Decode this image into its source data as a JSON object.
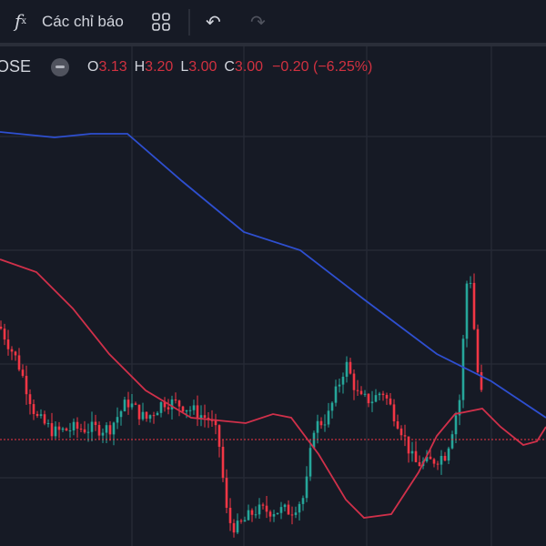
{
  "toolbar": {
    "fx_icon": "function-icon",
    "indicators_label": "Các chỉ báo",
    "layout_icon": "grid-layout-icon",
    "undo_icon": "undo-icon",
    "redo_icon": "redo-icon"
  },
  "legend": {
    "symbol": "OSE",
    "o_label": "O",
    "o": "3.13",
    "h_label": "H",
    "h": "3.20",
    "l_label": "L",
    "l": "3.00",
    "c_label": "C",
    "c": "3.00",
    "change": "−0.20 (−6.25%)"
  },
  "colors": {
    "background": "#161a25",
    "up": "#26a69a",
    "down": "#f23645",
    "ma_slow": "#2e4fd0",
    "ma_fast": "#d0304a",
    "last_price": "#f23645"
  },
  "chart_data": {
    "type": "candlestick",
    "last_price": 3.0,
    "close_path": [
      [
        0,
        3.62
      ],
      [
        20,
        3.42
      ],
      [
        40,
        3.12
      ],
      [
        60,
        3.04
      ],
      [
        80,
        3.06
      ],
      [
        100,
        3.06
      ],
      [
        120,
        3.06
      ],
      [
        140,
        3.21
      ],
      [
        160,
        3.11
      ],
      [
        180,
        3.21
      ],
      [
        200,
        3.19
      ],
      [
        230,
        3.11
      ],
      [
        240,
        3.01
      ],
      [
        250,
        2.56
      ],
      [
        260,
        2.51
      ],
      [
        280,
        2.61
      ],
      [
        300,
        2.61
      ],
      [
        320,
        2.61
      ],
      [
        335,
        2.69
      ],
      [
        345,
        3.07
      ],
      [
        360,
        3.12
      ],
      [
        380,
        3.42
      ],
      [
        395,
        3.22
      ],
      [
        410,
        3.22
      ],
      [
        420,
        3.27
      ],
      [
        440,
        3.07
      ],
      [
        455,
        2.87
      ],
      [
        470,
        2.87
      ],
      [
        490,
        2.92
      ],
      [
        505,
        3.22
      ],
      [
        515,
        4.02
      ],
      [
        520,
        3.67
      ],
      [
        525,
        3.37
      ],
      [
        530,
        3.22
      ]
    ],
    "ma_blue": [
      [
        0,
        4.69
      ],
      [
        60,
        4.66
      ],
      [
        100,
        4.68
      ],
      [
        140,
        4.68
      ],
      [
        200,
        4.42
      ],
      [
        268,
        4.14
      ],
      [
        330,
        4.04
      ],
      [
        400,
        3.77
      ],
      [
        480,
        3.47
      ],
      [
        540,
        3.32
      ],
      [
        600,
        3.12
      ]
    ],
    "ma_red": [
      [
        0,
        3.99
      ],
      [
        40,
        3.92
      ],
      [
        80,
        3.72
      ],
      [
        120,
        3.47
      ],
      [
        160,
        3.27
      ],
      [
        210,
        3.12
      ],
      [
        270,
        3.09
      ],
      [
        300,
        3.14
      ],
      [
        320,
        3.12
      ],
      [
        350,
        2.92
      ],
      [
        380,
        2.67
      ],
      [
        400,
        2.57
      ],
      [
        430,
        2.59
      ],
      [
        460,
        2.82
      ],
      [
        480,
        3.02
      ],
      [
        500,
        3.14
      ],
      [
        530,
        3.17
      ],
      [
        550,
        3.07
      ],
      [
        575,
        2.97
      ],
      [
        590,
        2.99
      ],
      [
        600,
        3.07
      ]
    ]
  }
}
